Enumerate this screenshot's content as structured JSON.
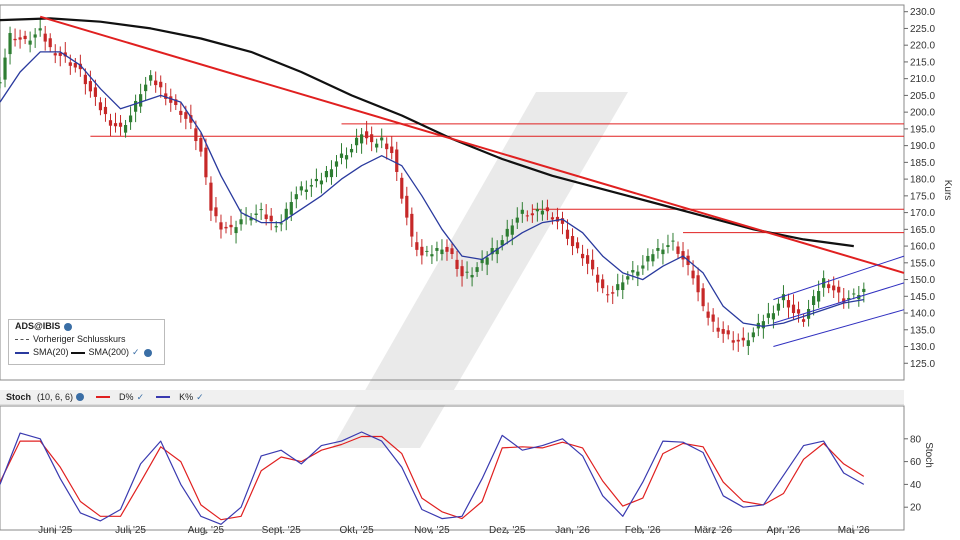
{
  "price_legend": {
    "symbol": "ADS@IBIS",
    "prev_close": "Vorheriger Schlusskurs",
    "sma20": "SMA(20)",
    "sma200": "SMA(200)"
  },
  "stoch_legend": {
    "title": "Stoch",
    "params": "(10, 6, 6)",
    "d": "D%",
    "k": "K%"
  },
  "colors": {
    "up": "#2e7d32",
    "down": "#c62828",
    "sma20": "#2a3a9e",
    "sma200": "#111111",
    "trendline": "#e02020",
    "hline": "#e02020",
    "channel": "#3030c0",
    "stoch_d": "#e02020",
    "stoch_k": "#3a3ab0",
    "watermark": "#d8d8d8"
  },
  "chart_data": [
    {
      "type": "candlestick",
      "ylabel": "Kurs",
      "ylim": [
        120,
        232
      ],
      "y_ticks": [
        "230.0",
        "225.0",
        "220.0",
        "215.0",
        "210.0",
        "205.0",
        "200.0",
        "195.0",
        "190.0",
        "185.0",
        "180.0",
        "175.0",
        "170.0",
        "165.0",
        "160.0",
        "155.0",
        "150.0",
        "145.0",
        "140.0",
        "135.0",
        "130.0",
        "125.0"
      ],
      "x_ticks": [
        "Juni '25",
        "Juli '25",
        "Aug. '25",
        "Sept. '25",
        "Okt. '25",
        "Nov. '25",
        "Dez. '25",
        "Jan. '26",
        "Feb. '26",
        "März '26",
        "Apr. '26",
        "Mai '26"
      ],
      "close_path": [
        [
          0,
          210
        ],
        [
          2,
          223
        ],
        [
          5,
          221
        ],
        [
          8,
          224
        ],
        [
          10,
          219
        ],
        [
          13,
          216
        ],
        [
          16,
          212
        ],
        [
          18,
          206
        ],
        [
          20,
          201
        ],
        [
          22,
          197
        ],
        [
          24,
          195
        ],
        [
          26,
          199
        ],
        [
          28,
          206
        ],
        [
          30,
          210
        ],
        [
          32,
          207
        ],
        [
          34,
          203
        ],
        [
          36,
          200
        ],
        [
          38,
          196
        ],
        [
          40,
          188
        ],
        [
          42,
          171
        ],
        [
          44,
          166
        ],
        [
          46,
          165
        ],
        [
          48,
          168
        ],
        [
          50,
          169
        ],
        [
          52,
          170
        ],
        [
          54,
          167
        ],
        [
          56,
          167
        ],
        [
          58,
          174
        ],
        [
          60,
          177
        ],
        [
          62,
          178
        ],
        [
          64,
          180
        ],
        [
          66,
          184
        ],
        [
          68,
          187
        ],
        [
          70,
          189
        ],
        [
          72,
          194
        ],
        [
          74,
          190
        ],
        [
          76,
          192
        ],
        [
          78,
          188
        ],
        [
          80,
          175
        ],
        [
          82,
          162
        ],
        [
          84,
          157
        ],
        [
          86,
          158
        ],
        [
          88,
          160
        ],
        [
          90,
          157
        ],
        [
          92,
          151
        ],
        [
          94,
          152
        ],
        [
          96,
          155
        ],
        [
          98,
          159
        ],
        [
          100,
          162
        ],
        [
          102,
          167
        ],
        [
          104,
          170
        ],
        [
          106,
          169
        ],
        [
          108,
          171
        ],
        [
          110,
          169
        ],
        [
          112,
          166
        ],
        [
          114,
          160
        ],
        [
          116,
          157
        ],
        [
          118,
          152
        ],
        [
          120,
          147
        ],
        [
          122,
          146
        ],
        [
          124,
          150
        ],
        [
          126,
          152
        ],
        [
          128,
          154
        ],
        [
          130,
          158
        ],
        [
          132,
          160
        ],
        [
          134,
          161
        ],
        [
          136,
          156
        ],
        [
          138,
          151
        ],
        [
          140,
          141
        ],
        [
          142,
          137
        ],
        [
          144,
          134
        ],
        [
          146,
          132
        ],
        [
          148,
          131
        ],
        [
          150,
          134
        ],
        [
          152,
          138
        ],
        [
          154,
          141
        ],
        [
          156,
          145
        ],
        [
          158,
          140
        ],
        [
          160,
          138
        ],
        [
          162,
          144
        ],
        [
          164,
          150
        ],
        [
          166,
          147
        ],
        [
          168,
          144
        ],
        [
          170,
          145
        ],
        [
          172,
          147
        ]
      ],
      "sma20": [
        [
          0,
          203
        ],
        [
          4,
          212
        ],
        [
          8,
          218
        ],
        [
          12,
          218
        ],
        [
          16,
          214
        ],
        [
          20,
          207
        ],
        [
          24,
          201
        ],
        [
          28,
          203
        ],
        [
          32,
          205
        ],
        [
          36,
          203
        ],
        [
          40,
          194
        ],
        [
          44,
          181
        ],
        [
          48,
          170
        ],
        [
          52,
          167
        ],
        [
          56,
          167
        ],
        [
          60,
          171
        ],
        [
          64,
          175
        ],
        [
          68,
          180
        ],
        [
          72,
          184
        ],
        [
          76,
          187
        ],
        [
          80,
          184
        ],
        [
          84,
          175
        ],
        [
          88,
          165
        ],
        [
          92,
          157
        ],
        [
          96,
          156
        ],
        [
          100,
          160
        ],
        [
          104,
          164
        ],
        [
          108,
          167
        ],
        [
          112,
          168
        ],
        [
          116,
          164
        ],
        [
          120,
          157
        ],
        [
          124,
          152
        ],
        [
          128,
          150
        ],
        [
          132,
          154
        ],
        [
          136,
          157
        ],
        [
          140,
          152
        ],
        [
          144,
          142
        ],
        [
          148,
          137
        ],
        [
          152,
          136
        ],
        [
          156,
          137
        ],
        [
          160,
          139
        ],
        [
          164,
          141
        ],
        [
          168,
          143
        ],
        [
          172,
          144
        ]
      ],
      "sma200": [
        [
          0,
          227.5
        ],
        [
          10,
          228
        ],
        [
          20,
          227
        ],
        [
          30,
          225
        ],
        [
          40,
          222
        ],
        [
          50,
          218
        ],
        [
          60,
          212
        ],
        [
          70,
          205
        ],
        [
          80,
          199
        ],
        [
          90,
          192
        ],
        [
          100,
          186
        ],
        [
          110,
          181
        ],
        [
          120,
          177
        ],
        [
          130,
          173
        ],
        [
          140,
          169
        ],
        [
          150,
          165
        ],
        [
          160,
          162
        ],
        [
          170,
          160
        ]
      ],
      "trendline": [
        [
          8,
          228.5
        ],
        [
          180,
          152
        ]
      ],
      "resistance_lines": [
        {
          "from": 18,
          "to": 180,
          "y": 192.8
        },
        {
          "from": 68,
          "to": 180,
          "y": 196.5
        },
        {
          "from": 106,
          "to": 180,
          "y": 171
        },
        {
          "from": 136,
          "to": 180,
          "y": 164
        }
      ],
      "channel": [
        [
          [
            154,
            144
          ],
          [
            180,
            157
          ]
        ],
        [
          [
            154,
            130
          ],
          [
            180,
            141
          ]
        ]
      ],
      "channel_mid": [
        [
          154,
          137
        ],
        [
          180,
          149
        ]
      ],
      "x_max": 180
    },
    {
      "type": "line",
      "ylabel": "Stoch",
      "ylim": [
        0,
        100
      ],
      "y_ticks": [
        "80",
        "60",
        "40",
        "20"
      ],
      "series": [
        {
          "name": "D%",
          "values": [
            [
              0,
              42
            ],
            [
              4,
              78
            ],
            [
              8,
              78
            ],
            [
              12,
              55
            ],
            [
              16,
              25
            ],
            [
              20,
              12
            ],
            [
              24,
              12
            ],
            [
              28,
              42
            ],
            [
              32,
              73
            ],
            [
              36,
              60
            ],
            [
              40,
              22
            ],
            [
              44,
              9
            ],
            [
              48,
              12
            ],
            [
              52,
              52
            ],
            [
              56,
              64
            ],
            [
              60,
              60
            ],
            [
              64,
              70
            ],
            [
              68,
              75
            ],
            [
              72,
              82
            ],
            [
              76,
              82
            ],
            [
              80,
              67
            ],
            [
              84,
              28
            ],
            [
              88,
              16
            ],
            [
              92,
              10
            ],
            [
              96,
              25
            ],
            [
              100,
              72
            ],
            [
              104,
              73
            ],
            [
              108,
              72
            ],
            [
              112,
              77
            ],
            [
              116,
              72
            ],
            [
              120,
              43
            ],
            [
              124,
              21
            ],
            [
              128,
              28
            ],
            [
              132,
              67
            ],
            [
              136,
              76
            ],
            [
              140,
              73
            ],
            [
              144,
              42
            ],
            [
              148,
              25
            ],
            [
              152,
              22
            ],
            [
              156,
              32
            ],
            [
              160,
              62
            ],
            [
              164,
              76
            ],
            [
              168,
              58
            ],
            [
              172,
              47
            ]
          ]
        },
        {
          "name": "K%",
          "values": [
            [
              0,
              40
            ],
            [
              4,
              85
            ],
            [
              8,
              80
            ],
            [
              12,
              45
            ],
            [
              16,
              15
            ],
            [
              20,
              8
            ],
            [
              24,
              18
            ],
            [
              28,
              58
            ],
            [
              32,
              78
            ],
            [
              36,
              40
            ],
            [
              40,
              12
            ],
            [
              44,
              5
            ],
            [
              48,
              20
            ],
            [
              52,
              65
            ],
            [
              56,
              70
            ],
            [
              60,
              58
            ],
            [
              64,
              74
            ],
            [
              68,
              78
            ],
            [
              72,
              86
            ],
            [
              76,
              78
            ],
            [
              80,
              55
            ],
            [
              84,
              18
            ],
            [
              88,
              10
            ],
            [
              92,
              12
            ],
            [
              96,
              45
            ],
            [
              100,
              83
            ],
            [
              104,
              70
            ],
            [
              108,
              74
            ],
            [
              112,
              80
            ],
            [
              116,
              65
            ],
            [
              120,
              30
            ],
            [
              124,
              12
            ],
            [
              128,
              42
            ],
            [
              132,
              78
            ],
            [
              136,
              77
            ],
            [
              140,
              68
            ],
            [
              144,
              30
            ],
            [
              148,
              20
            ],
            [
              152,
              22
            ],
            [
              156,
              48
            ],
            [
              160,
              74
            ],
            [
              164,
              78
            ],
            [
              168,
              50
            ],
            [
              172,
              40
            ]
          ]
        }
      ],
      "x_max": 180
    }
  ]
}
